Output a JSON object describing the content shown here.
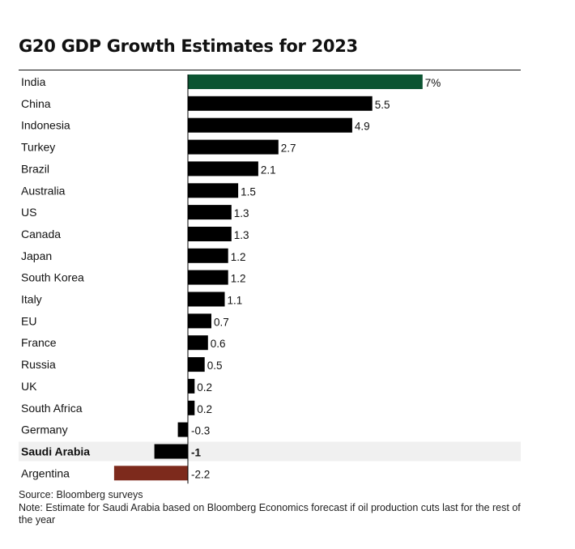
{
  "title": "G20 GDP Growth Estimates for 2023",
  "source": "Source: Bloomberg surveys",
  "note": "Note: Estimate for Saudi Arabia based on Bloomberg Economics forecast if oil production cuts last for the rest of the year",
  "colors": {
    "default_bar": "#000000",
    "top_bar": "#0b5432",
    "bottom_bar": "#7d2a1c",
    "highlight_row": "#f0f0f0"
  },
  "chart_data": {
    "type": "bar",
    "orientation": "horizontal",
    "title": "G20 GDP Growth Estimates for 2023",
    "categories": [
      "India",
      "China",
      "Indonesia",
      "Turkey",
      "Brazil",
      "Australia",
      "US",
      "Canada",
      "Japan",
      "South Korea",
      "Italy",
      "EU",
      "France",
      "Russia",
      "UK",
      "South Africa",
      "Germany",
      "Saudi Arabia",
      "Argentina"
    ],
    "values": [
      7,
      5.5,
      4.9,
      2.7,
      2.1,
      1.5,
      1.3,
      1.3,
      1.2,
      1.2,
      1.1,
      0.7,
      0.6,
      0.5,
      0.2,
      0.2,
      -0.3,
      -1,
      -2.2
    ],
    "value_labels": [
      "7%",
      "5.5",
      "4.9",
      "2.7",
      "2.1",
      "1.5",
      "1.3",
      "1.3",
      "1.2",
      "1.2",
      "1.1",
      "0.7",
      "0.6",
      "0.5",
      "0.2",
      "0.2",
      "-0.3",
      "-1",
      "-2.2"
    ],
    "highlighted_category": "Saudi Arabia",
    "xlim": [
      -2.2,
      7
    ],
    "grid": false,
    "legend": "none"
  }
}
